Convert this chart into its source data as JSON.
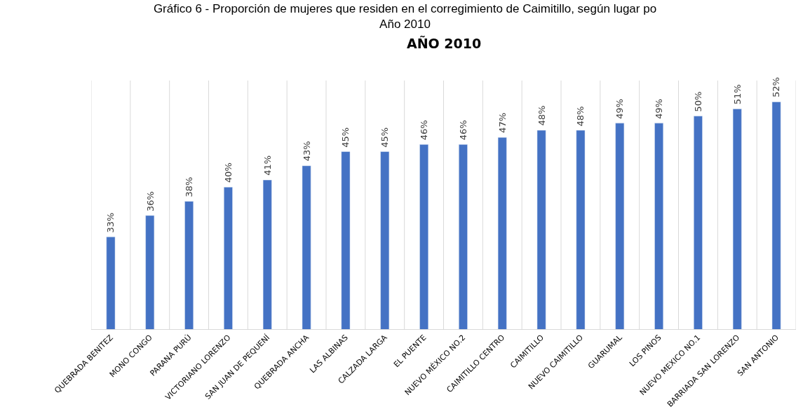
{
  "chart_data": {
    "type": "bar",
    "title": "Gráfico 6 - Proporción de mujeres que residen en el corregimiento de Caimitillo, según lugar po\nAño 2010",
    "subtitle": "AÑO 2010",
    "categories": [
      "QUEBRADA BENITEZ",
      "MONO CONGO",
      "PARANA PURÚ",
      "VICTORIANO LORENZO",
      "SAN JUAN DE PEQUENÍ",
      "QUEBRADA ANCHA",
      "LAS ALBINAS",
      "CALZADA LARGA",
      "EL PUENTE",
      "NUEVO MÉXICO NO.2",
      "CAIMITILLO CENTRO",
      "CAIMITILLO",
      "NUEVO CAIMITILLO",
      "GUARUMAL",
      "LOS PINOS",
      "NUEVO MEXICO NO.1",
      "BARRIADA SAN LORENZO",
      "SAN ANTONIO"
    ],
    "values": [
      33,
      36,
      38,
      40,
      41,
      43,
      45,
      45,
      46,
      46,
      47,
      48,
      48,
      49,
      49,
      50,
      51,
      52
    ],
    "value_labels": [
      "33%",
      "36%",
      "38%",
      "40%",
      "41%",
      "43%",
      "45%",
      "45%",
      "46%",
      "46%",
      "47%",
      "48%",
      "48%",
      "49%",
      "49%",
      "50%",
      "51%",
      "52%"
    ],
    "color": "#4472c4",
    "ylim": [
      20,
      55
    ],
    "grid": "x",
    "tick_labels": "x"
  }
}
